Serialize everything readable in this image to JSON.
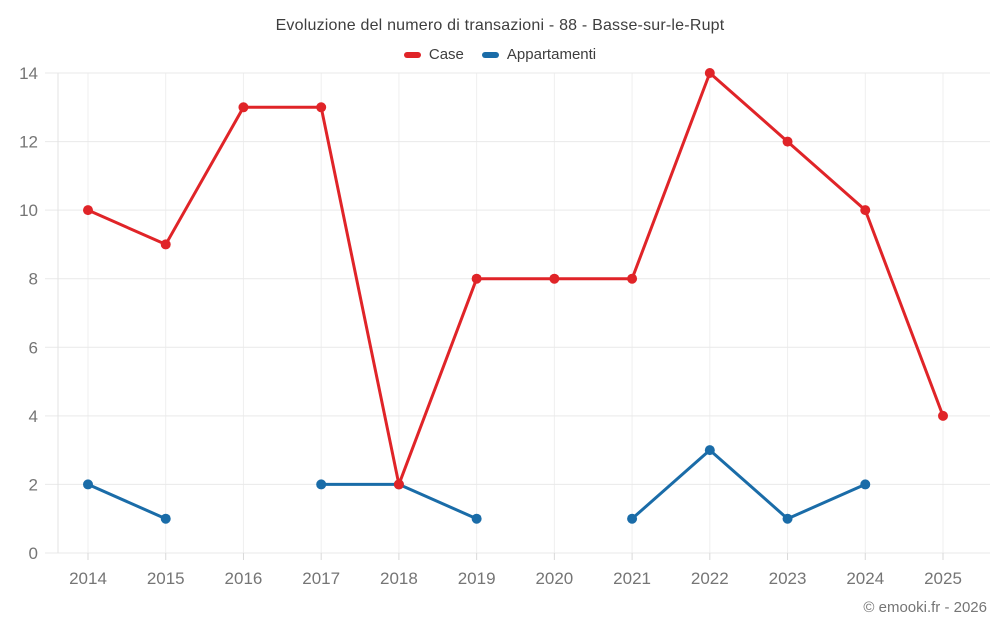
{
  "header": {
    "title": "Evoluzione del numero di transazioni - 88 - Basse-sur-le-Rupt"
  },
  "legend": {
    "items": [
      {
        "label": "Case",
        "color": "#e02428"
      },
      {
        "label": "Appartamenti",
        "color": "#1a6ca8"
      }
    ]
  },
  "footer": {
    "credit": "© emooki.fr - 2026"
  },
  "chart_data": {
    "type": "line",
    "title": "Evoluzione del numero di transazioni - 88 - Basse-sur-le-Rupt",
    "categories": [
      "2014",
      "2015",
      "2016",
      "2017",
      "2018",
      "2019",
      "2020",
      "2021",
      "2022",
      "2023",
      "2024",
      "2025"
    ],
    "series": [
      {
        "name": "Case",
        "color": "#e02428",
        "values": [
          10,
          9,
          13,
          13,
          2,
          8,
          8,
          8,
          14,
          12,
          10,
          4
        ]
      },
      {
        "name": "Appartamenti",
        "color": "#1a6ca8",
        "values": [
          2,
          1,
          null,
          2,
          2,
          1,
          null,
          1,
          3,
          1,
          2,
          null
        ]
      }
    ],
    "xlabel": "",
    "ylabel": "",
    "ylim": [
      0,
      14
    ],
    "ytick_step": 2,
    "yticks": [
      0,
      2,
      4,
      6,
      8,
      10,
      12,
      14
    ],
    "grid": true,
    "legend_position": "top",
    "marker": "circle",
    "axis_text_color": "#757575",
    "title_color": "#3e3e3e"
  }
}
